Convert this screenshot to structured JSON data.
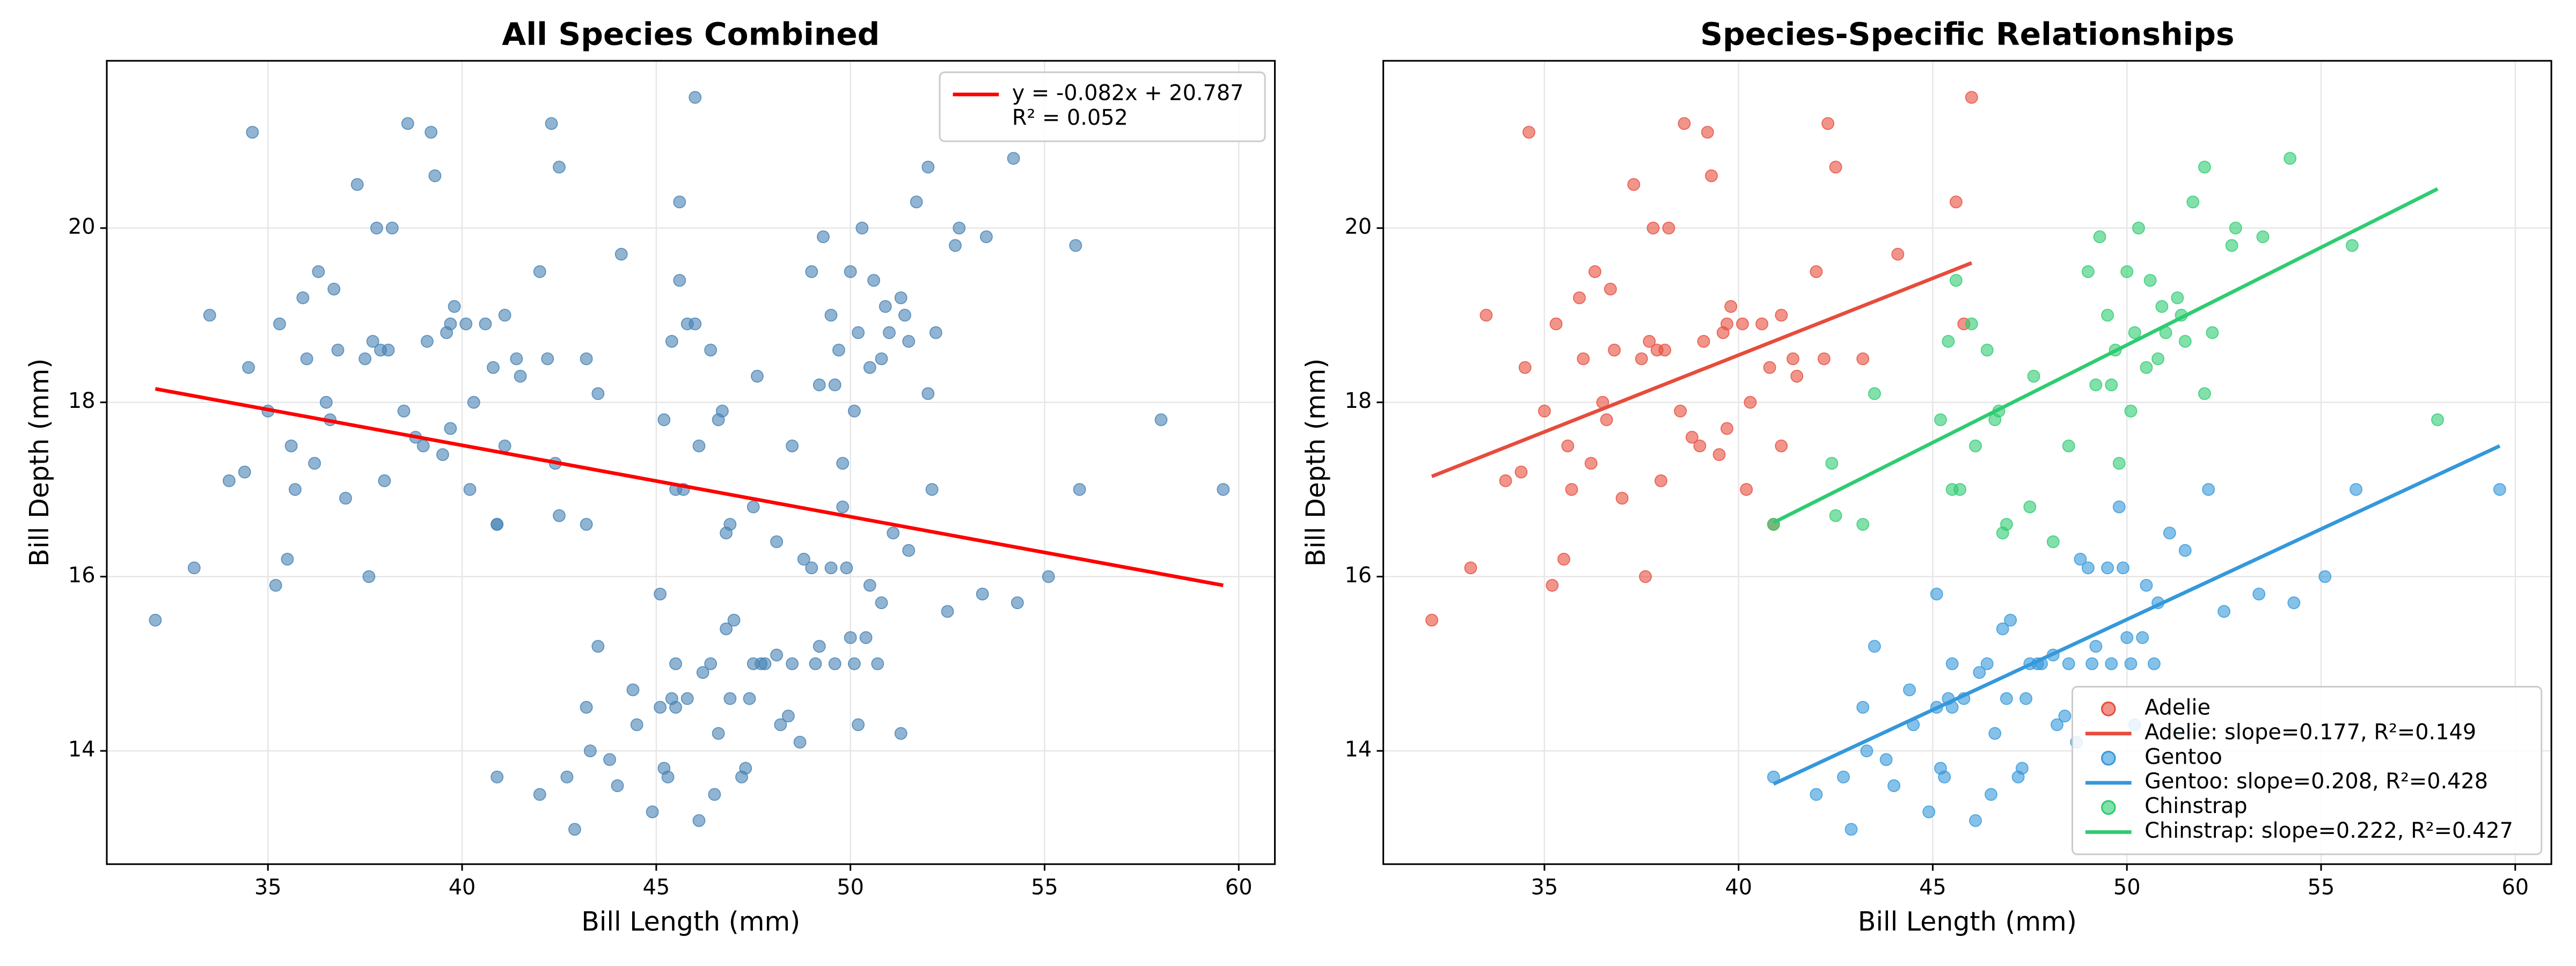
{
  "chart_data": [
    {
      "type": "scatter",
      "title": "All Species Combined",
      "x_label": "Bill Length (mm)",
      "y_label": "Bill Depth (mm)",
      "xlim": [
        30.85,
        60.93
      ],
      "ylim": [
        12.7,
        21.92
      ],
      "xticks": [
        35,
        40,
        45,
        50,
        55,
        60
      ],
      "yticks": [
        14,
        16,
        18,
        20
      ],
      "grid": true,
      "legend": "upper right",
      "series": [
        {
          "color": "#4682b4",
          "x": [
            32.1,
            33.1,
            33.5,
            34.0,
            34.5,
            34.6,
            34.4,
            35.0,
            35.2,
            35.3,
            35.5,
            35.6,
            35.7,
            35.9,
            36.0,
            36.2,
            36.3,
            36.5,
            36.7,
            36.8,
            37.0,
            37.3,
            37.5,
            37.7,
            37.8,
            37.9,
            38.0,
            38.2,
            38.5,
            38.6,
            38.8,
            39.0,
            39.1,
            39.2,
            39.3,
            39.5,
            39.6,
            39.7,
            39.8,
            40.2,
            40.3,
            40.6,
            40.8,
            40.9,
            41.1,
            41.1,
            41.4,
            41.5,
            42.0,
            42.2,
            42.3,
            42.5,
            43.2,
            44.1,
            45.8,
            46.0,
            40.1,
            37.6,
            36.6,
            38.1,
            39.7,
            45.6,
            40.9,
            42.0,
            42.7,
            42.9,
            43.2,
            43.3,
            43.5,
            43.8,
            44.0,
            44.4,
            44.9,
            45.1,
            45.2,
            45.3,
            45.4,
            45.5,
            45.5,
            45.8,
            46.1,
            46.2,
            46.4,
            46.5,
            46.6,
            46.8,
            47.0,
            47.2,
            47.4,
            47.5,
            47.7,
            47.8,
            48.1,
            48.2,
            48.4,
            48.5,
            48.7,
            49.0,
            49.1,
            49.2,
            49.5,
            49.6,
            49.8,
            49.9,
            50.0,
            50.1,
            50.2,
            50.4,
            50.5,
            50.7,
            50.8,
            51.1,
            51.3,
            51.5,
            52.1,
            52.5,
            53.4,
            54.3,
            55.1,
            55.9,
            59.6,
            45.1,
            46.9,
            48.8,
            44.5,
            47.3,
            40.9,
            42.4,
            42.5,
            43.2,
            43.5,
            45.2,
            45.4,
            45.6,
            45.7,
            46.0,
            46.1,
            46.4,
            46.6,
            46.7,
            46.8,
            46.9,
            47.5,
            47.6,
            48.1,
            48.5,
            49.0,
            49.2,
            49.3,
            49.5,
            49.7,
            49.8,
            50.0,
            50.1,
            50.3,
            50.5,
            50.6,
            50.8,
            50.9,
            51.0,
            51.3,
            51.4,
            51.5,
            51.7,
            52.0,
            52.0,
            52.2,
            52.7,
            52.8,
            53.5,
            54.2,
            55.8,
            58.0,
            45.5,
            50.2,
            49.6
          ],
          "y": [
            15.5,
            16.1,
            19.0,
            17.1,
            18.4,
            21.1,
            17.2,
            17.9,
            15.9,
            18.9,
            16.2,
            17.5,
            17.0,
            19.2,
            18.5,
            17.3,
            19.5,
            18.0,
            19.3,
            18.6,
            16.9,
            20.5,
            18.5,
            18.7,
            20.0,
            18.6,
            17.1,
            20.0,
            17.9,
            21.2,
            17.6,
            17.5,
            18.7,
            21.1,
            20.6,
            17.4,
            18.8,
            18.9,
            19.1,
            17.0,
            18.0,
            18.9,
            18.4,
            16.6,
            17.5,
            19.0,
            18.5,
            18.3,
            19.5,
            18.5,
            21.2,
            20.7,
            18.5,
            19.7,
            18.9,
            21.5,
            18.9,
            16.0,
            17.8,
            18.6,
            17.7,
            20.3,
            13.7,
            13.5,
            13.7,
            13.1,
            14.5,
            14.0,
            15.2,
            13.9,
            13.6,
            14.7,
            13.3,
            14.5,
            13.8,
            13.7,
            14.6,
            15.0,
            14.5,
            14.6,
            13.2,
            14.9,
            15.0,
            13.5,
            14.2,
            15.4,
            15.5,
            13.7,
            14.6,
            15.0,
            15.0,
            15.0,
            15.1,
            14.3,
            14.4,
            15.0,
            14.1,
            16.1,
            15.0,
            15.2,
            16.1,
            15.0,
            16.8,
            16.1,
            15.3,
            15.0,
            14.3,
            15.3,
            15.9,
            15.0,
            15.7,
            16.5,
            14.2,
            16.3,
            17.0,
            15.6,
            15.8,
            15.7,
            16.0,
            17.0,
            17.0,
            15.8,
            14.6,
            16.2,
            14.3,
            13.8,
            16.6,
            17.3,
            16.7,
            16.6,
            18.1,
            17.8,
            18.7,
            19.4,
            17.0,
            18.9,
            17.5,
            18.6,
            17.8,
            17.9,
            16.5,
            16.6,
            16.8,
            18.3,
            16.4,
            17.5,
            19.5,
            18.2,
            19.9,
            19.0,
            18.6,
            17.3,
            19.5,
            17.9,
            20.0,
            18.4,
            19.4,
            18.5,
            19.1,
            18.8,
            19.2,
            19.0,
            18.7,
            20.3,
            18.1,
            20.7,
            18.8,
            19.8,
            20.0,
            19.9,
            20.8,
            19.8,
            17.8,
            17.0,
            18.8,
            18.2
          ]
        }
      ],
      "fits": [
        {
          "name": [
            "y = -0.082x + 20.787",
            "R² = 0.052"
          ],
          "color": "#ff0000",
          "x": [
            32.1,
            59.6
          ],
          "y": [
            18.155,
            15.9
          ]
        }
      ]
    },
    {
      "type": "scatter",
      "title": "Species-Specific Relationships",
      "x_label": "Bill Length (mm)",
      "y_label": "Bill Depth (mm)",
      "xlim": [
        30.85,
        60.93
      ],
      "ylim": [
        12.7,
        21.92
      ],
      "xticks": [
        35,
        40,
        45,
        50,
        55,
        60
      ],
      "yticks": [
        14,
        16,
        18,
        20
      ],
      "grid": true,
      "legend": "lower right",
      "series": [
        {
          "name": "Adelie",
          "color": "#e74c3c",
          "x": [
            32.1,
            33.1,
            33.5,
            34.0,
            34.5,
            34.6,
            34.4,
            35.0,
            35.2,
            35.3,
            35.5,
            35.6,
            35.7,
            35.9,
            36.0,
            36.2,
            36.3,
            36.5,
            36.7,
            36.8,
            37.0,
            37.3,
            37.5,
            37.7,
            37.8,
            37.9,
            38.0,
            38.2,
            38.5,
            38.6,
            38.8,
            39.0,
            39.1,
            39.2,
            39.3,
            39.5,
            39.6,
            39.7,
            39.8,
            40.2,
            40.3,
            40.6,
            40.8,
            40.9,
            41.1,
            41.1,
            41.4,
            41.5,
            42.0,
            42.2,
            42.3,
            42.5,
            43.2,
            44.1,
            45.8,
            46.0,
            40.1,
            37.6,
            36.6,
            38.1,
            39.7,
            45.6
          ],
          "y": [
            15.5,
            16.1,
            19.0,
            17.1,
            18.4,
            21.1,
            17.2,
            17.9,
            15.9,
            18.9,
            16.2,
            17.5,
            17.0,
            19.2,
            18.5,
            17.3,
            19.5,
            18.0,
            19.3,
            18.6,
            16.9,
            20.5,
            18.5,
            18.7,
            20.0,
            18.6,
            17.1,
            20.0,
            17.9,
            21.2,
            17.6,
            17.5,
            18.7,
            21.1,
            20.6,
            17.4,
            18.8,
            18.9,
            19.1,
            17.0,
            18.0,
            18.9,
            18.4,
            16.6,
            17.5,
            19.0,
            18.5,
            18.3,
            19.5,
            18.5,
            21.2,
            20.7,
            18.5,
            19.7,
            18.9,
            21.5,
            18.9,
            16.0,
            17.8,
            18.6,
            17.7,
            20.3
          ]
        },
        {
          "name": "Gentoo",
          "color": "#3498db",
          "x": [
            40.9,
            42.0,
            42.7,
            42.9,
            43.2,
            43.3,
            43.5,
            43.8,
            44.0,
            44.4,
            44.9,
            45.1,
            45.2,
            45.3,
            45.4,
            45.5,
            45.5,
            45.8,
            46.1,
            46.2,
            46.4,
            46.5,
            46.6,
            46.8,
            47.0,
            47.2,
            47.4,
            47.5,
            47.7,
            47.8,
            48.1,
            48.2,
            48.4,
            48.5,
            48.7,
            49.0,
            49.1,
            49.2,
            49.5,
            49.6,
            49.8,
            49.9,
            50.0,
            50.1,
            50.2,
            50.4,
            50.5,
            50.7,
            50.8,
            51.1,
            51.3,
            51.5,
            52.1,
            52.5,
            53.4,
            54.3,
            55.1,
            55.9,
            59.6,
            45.1,
            46.9,
            48.8,
            44.5,
            47.3
          ],
          "y": [
            13.7,
            13.5,
            13.7,
            13.1,
            14.5,
            14.0,
            15.2,
            13.9,
            13.6,
            14.7,
            13.3,
            14.5,
            13.8,
            13.7,
            14.6,
            15.0,
            14.5,
            14.6,
            13.2,
            14.9,
            15.0,
            13.5,
            14.2,
            15.4,
            15.5,
            13.7,
            14.6,
            15.0,
            15.0,
            15.0,
            15.1,
            14.3,
            14.4,
            15.0,
            14.1,
            16.1,
            15.0,
            15.2,
            16.1,
            15.0,
            16.8,
            16.1,
            15.3,
            15.0,
            14.3,
            15.3,
            15.9,
            15.0,
            15.7,
            16.5,
            14.2,
            16.3,
            17.0,
            15.6,
            15.8,
            15.7,
            16.0,
            17.0,
            17.0,
            15.8,
            14.6,
            16.2,
            14.3,
            13.8
          ]
        },
        {
          "name": "Chinstrap",
          "color": "#2ecc71",
          "x": [
            40.9,
            42.4,
            42.5,
            43.2,
            43.5,
            45.2,
            45.4,
            45.6,
            45.7,
            46.0,
            46.1,
            46.4,
            46.6,
            46.7,
            46.8,
            46.9,
            47.5,
            47.6,
            48.1,
            48.5,
            49.0,
            49.2,
            49.3,
            49.5,
            49.7,
            49.8,
            50.0,
            50.1,
            50.3,
            50.5,
            50.6,
            50.8,
            50.9,
            51.0,
            51.3,
            51.4,
            51.5,
            51.7,
            52.0,
            52.0,
            52.2,
            52.7,
            52.8,
            53.5,
            54.2,
            55.8,
            58.0,
            45.5,
            50.2,
            49.6
          ],
          "y": [
            16.6,
            17.3,
            16.7,
            16.6,
            18.1,
            17.8,
            18.7,
            19.4,
            17.0,
            18.9,
            17.5,
            18.6,
            17.8,
            17.9,
            16.5,
            16.6,
            16.8,
            18.3,
            16.4,
            17.5,
            19.5,
            18.2,
            19.9,
            19.0,
            18.6,
            17.3,
            19.5,
            17.9,
            20.0,
            18.4,
            19.4,
            18.5,
            19.1,
            18.8,
            19.2,
            19.0,
            18.7,
            20.3,
            18.1,
            20.7,
            18.8,
            19.8,
            20.0,
            19.9,
            20.8,
            19.8,
            17.8,
            17.0,
            18.8,
            18.2
          ]
        }
      ],
      "fits": [
        {
          "name": [
            "Adelie: slope=0.177, R²=0.149"
          ],
          "color": "#e74c3c",
          "x": [
            32.1,
            46.0
          ],
          "y": [
            17.15,
            19.6
          ]
        },
        {
          "name": [
            "Gentoo: slope=0.208, R²=0.428"
          ],
          "color": "#3498db",
          "x": [
            40.9,
            59.6
          ],
          "y": [
            13.62,
            17.5
          ]
        },
        {
          "name": [
            "Chinstrap: slope=0.222, R²=0.427"
          ],
          "color": "#2ecc71",
          "x": [
            40.9,
            58.0
          ],
          "y": [
            16.62,
            20.45
          ]
        }
      ]
    }
  ]
}
